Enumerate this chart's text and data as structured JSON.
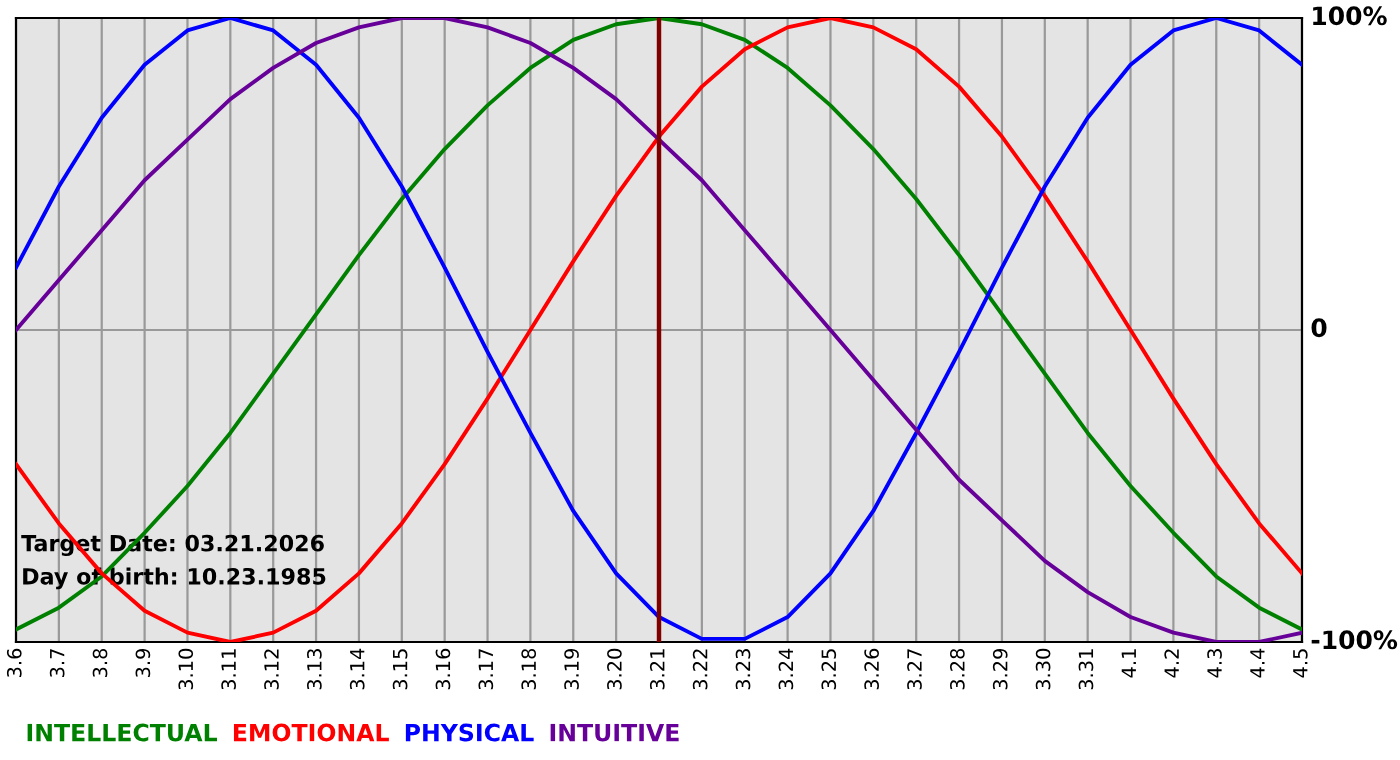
{
  "chart_data": {
    "type": "line",
    "categories": [
      "3.6",
      "3.7",
      "3.8",
      "3.9",
      "3.10",
      "3.11",
      "3.12",
      "3.13",
      "3.14",
      "3.15",
      "3.16",
      "3.17",
      "3.18",
      "3.19",
      "3.20",
      "3.21",
      "3.22",
      "3.23",
      "3.24",
      "3.25",
      "3.26",
      "3.27",
      "3.28",
      "3.29",
      "3.30",
      "3.31",
      "4.1",
      "4.2",
      "4.3",
      "4.4",
      "4.5"
    ],
    "series": [
      {
        "name": "INTELLECTUAL",
        "color": "#008000",
        "values": [
          -96,
          -89,
          -79,
          -65,
          -50,
          -33,
          -14,
          5,
          24,
          42,
          58,
          72,
          84,
          93,
          98,
          100,
          98,
          93,
          84,
          72,
          58,
          42,
          24,
          5,
          -14,
          -33,
          -50,
          -65,
          -79,
          -89,
          -96
        ]
      },
      {
        "name": "EMOTIONAL",
        "color": "#ff0000",
        "values": [
          -43,
          -62,
          -78,
          -90,
          -97,
          -100,
          -97,
          -90,
          -78,
          -62,
          -43,
          -22,
          0,
          22,
          43,
          62,
          78,
          90,
          97,
          100,
          97,
          90,
          78,
          62,
          43,
          22,
          0,
          -22,
          -43,
          -62,
          -78
        ]
      },
      {
        "name": "PHYSICAL",
        "color": "#0000ff",
        "values": [
          20,
          46,
          68,
          85,
          96,
          100,
          96,
          85,
          68,
          46,
          20,
          -7,
          -33,
          -58,
          -78,
          -92,
          -99,
          -99,
          -92,
          -78,
          -58,
          -33,
          -7,
          20,
          46,
          68,
          85,
          96,
          100,
          96,
          85
        ]
      },
      {
        "name": "INTUITIVE",
        "color": "#660099",
        "values": [
          0,
          16,
          32,
          48,
          61,
          74,
          84,
          92,
          97,
          100,
          100,
          97,
          92,
          84,
          74,
          61,
          48,
          32,
          16,
          0,
          -16,
          -32,
          -48,
          -61,
          -74,
          -84,
          -92,
          -97,
          -100,
          -100,
          -97
        ]
      }
    ],
    "ylim": [
      -100,
      100
    ],
    "yticks": [
      {
        "value": 100,
        "label": "100%"
      },
      0,
      {
        "value": -100,
        "label": "-100%"
      }
    ],
    "grid": true,
    "legend": "bottom",
    "ref_lines": [
      {
        "axis": "x",
        "value": "3.21",
        "color": "#800000"
      }
    ],
    "annotations": [
      "Target Date: 03.21.2026",
      "Day of birth: 10.23.1985"
    ]
  }
}
